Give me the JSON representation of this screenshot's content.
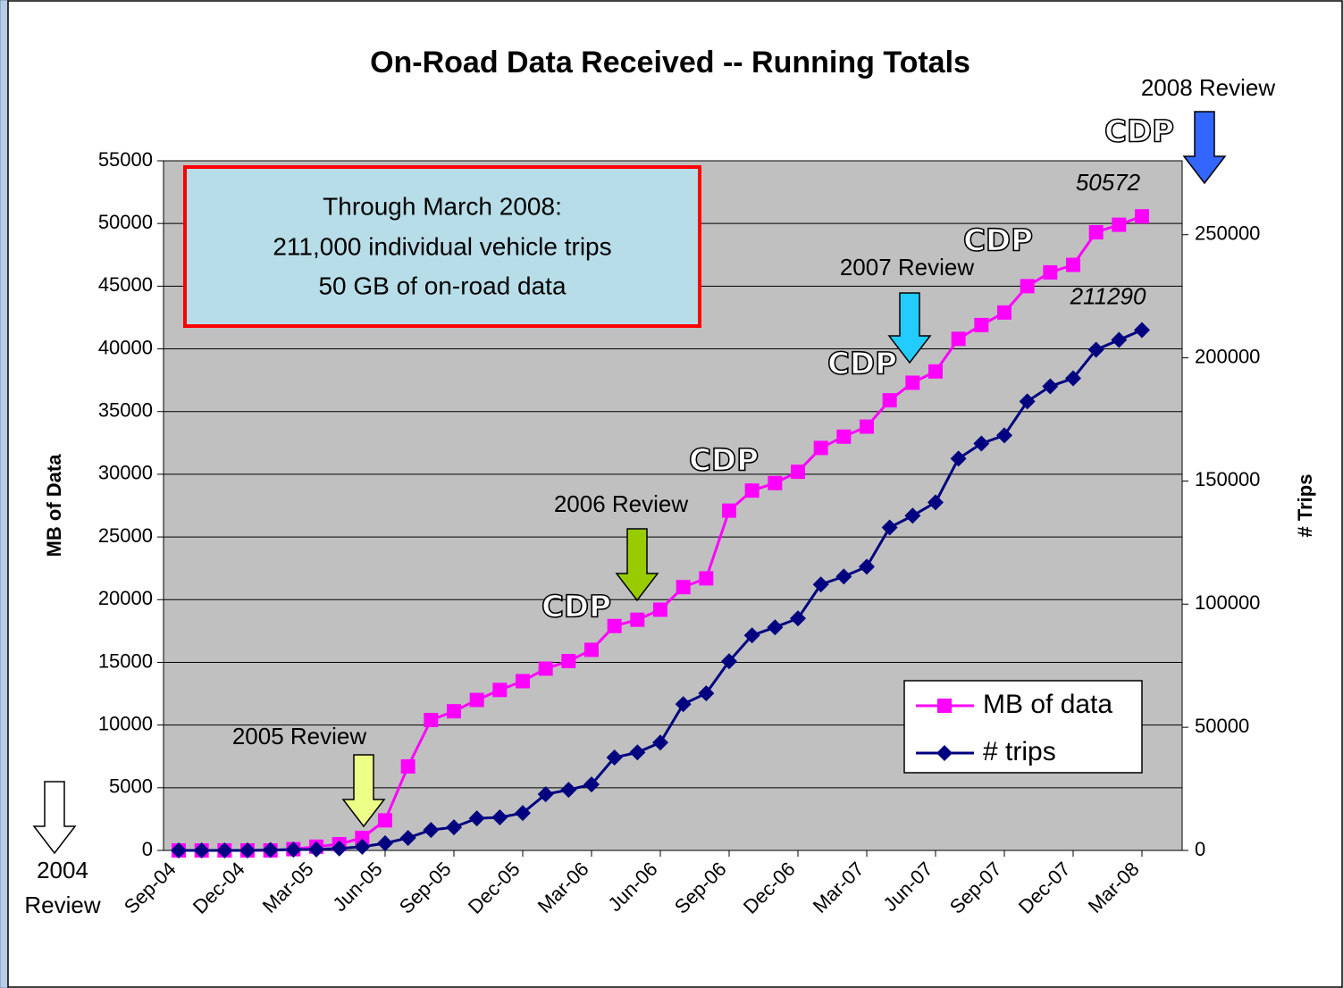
{
  "chart_data": {
    "type": "line",
    "title": "On-Road Data Received -- Running Totals",
    "y_label": "MB of Data",
    "y2_label": "# Trips",
    "categories": [
      "Sep-04",
      null,
      null,
      "Dec-04",
      null,
      null,
      "Mar-05",
      null,
      null,
      "Jun-05",
      null,
      null,
      "Sep-05",
      null,
      null,
      "Dec-05",
      null,
      null,
      "Mar-06",
      null,
      null,
      "Jun-06",
      null,
      null,
      "Sep-06",
      null,
      null,
      "Dec-06",
      null,
      null,
      "Mar-07",
      null,
      null,
      "Jun-07",
      null,
      null,
      "Sep-07",
      null,
      null,
      "Dec-07",
      null,
      null,
      "Mar-08"
    ],
    "series": [
      {
        "name": "MB of data",
        "color": "#ff00ff",
        "marker": "square",
        "axis": "y",
        "values": [
          0,
          0,
          0,
          0,
          0,
          100,
          300,
          500,
          1000,
          2400,
          6700,
          10400,
          11100,
          12000,
          12800,
          13500,
          14500,
          15100,
          16000,
          17900,
          18400,
          19200,
          21000,
          21700,
          27100,
          28700,
          29300,
          30200,
          32100,
          33000,
          33800,
          35900,
          37300,
          38200,
          40800,
          41900,
          42900,
          45000,
          46100,
          46700,
          49300,
          49900,
          50572
        ]
      },
      {
        "name": "# trips",
        "color": "#000080",
        "marker": "diamond",
        "axis": "y2",
        "values": [
          0,
          0,
          0,
          0,
          200,
          300,
          400,
          800,
          1500,
          2900,
          5100,
          8300,
          9400,
          13000,
          13400,
          15200,
          22800,
          24600,
          26800,
          37700,
          39800,
          43800,
          59400,
          63800,
          76800,
          87300,
          90600,
          94200,
          108000,
          111200,
          115200,
          131100,
          135900,
          141300,
          159100,
          165200,
          168500,
          182300,
          188400,
          191700,
          203300,
          207300,
          211290
        ]
      }
    ],
    "ylim": [
      0,
      55000
    ],
    "yticks": [
      0,
      5000,
      10000,
      15000,
      20000,
      25000,
      30000,
      35000,
      40000,
      45000,
      50000,
      55000
    ],
    "y2lim": [
      0,
      280000
    ],
    "y2ticks": [
      0,
      50000,
      100000,
      150000,
      200000,
      250000
    ],
    "grid": true,
    "legend": "lower right",
    "note": [
      "Through March 2008:",
      "211,000 individual vehicle trips",
      "50 GB of on-road data"
    ],
    "reviews": {
      "r2004": [
        "2004",
        "Review"
      ],
      "r2005": "2005 Review",
      "r2006": "2006 Review",
      "r2007": "2007 Review",
      "r2008": "2008 Review"
    },
    "cdp": [
      "CDP",
      "CDP",
      "CDP",
      "CDP",
      "CDP"
    ]
  }
}
